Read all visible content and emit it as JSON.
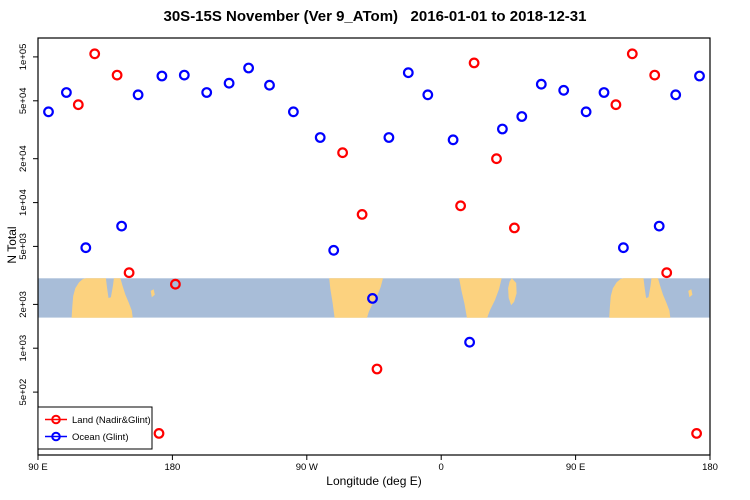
{
  "chart_data": {
    "type": "scatter",
    "title": "30S-15S November (Ver 9_ATom)   2016-01-01 to 2018-12-31",
    "xlabel": "Longitude (deg E)",
    "ylabel": "N Total",
    "y_scale": "log",
    "xlim": [
      90,
      540
    ],
    "ylim_log": [
      2.267,
      5.13
    ],
    "x_ticks": [
      {
        "pos": 90,
        "label": "90 E"
      },
      {
        "pos": 180,
        "label": "180"
      },
      {
        "pos": 270,
        "label": "90 W"
      },
      {
        "pos": 360,
        "label": "0"
      },
      {
        "pos": 450,
        "label": "90 E"
      },
      {
        "pos": 540,
        "label": "180"
      }
    ],
    "y_ticks": [
      {
        "value": 500,
        "label": "5e+02"
      },
      {
        "value": 1000,
        "label": "1e+03"
      },
      {
        "value": 2000,
        "label": "2e+03"
      },
      {
        "value": 5000,
        "label": "5e+03"
      },
      {
        "value": 10000,
        "label": "1e+04"
      },
      {
        "value": 20000,
        "label": "2e+04"
      },
      {
        "value": 50000,
        "label": "5e+04"
      },
      {
        "value": 100000,
        "label": "1e+05"
      }
    ],
    "legend": [
      {
        "label": "Land (Nadir&Glint)",
        "color": "#ff0000"
      },
      {
        "label": "Ocean (Glint)",
        "color": "#0000ff"
      }
    ],
    "series": [
      {
        "id": "land",
        "name": "Land (Nadir&Glint)",
        "color": "#ff0000",
        "points": [
          [
            117,
            47000
          ],
          [
            128,
            105000
          ],
          [
            143,
            75000
          ],
          [
            477,
            47000
          ],
          [
            488,
            105000
          ],
          [
            503,
            75000
          ],
          [
            294,
            22000
          ],
          [
            382,
            91000
          ],
          [
            397,
            20000
          ],
          [
            307,
            8300
          ],
          [
            373,
            9500
          ],
          [
            409,
            6700
          ],
          [
            151,
            3300
          ],
          [
            182,
            2750
          ],
          [
            511,
            3300
          ],
          [
            317,
            720
          ],
          [
            171,
            260
          ],
          [
            531,
            260
          ]
        ]
      },
      {
        "id": "ocean",
        "name": "Ocean (Glint)",
        "color": "#0000ff",
        "points": [
          [
            97,
            42000
          ],
          [
            109,
            57000
          ],
          [
            157,
            55000
          ],
          [
            173,
            74000
          ],
          [
            188,
            75000
          ],
          [
            203,
            57000
          ],
          [
            218,
            66000
          ],
          [
            231,
            84000
          ],
          [
            245,
            64000
          ],
          [
            261,
            42000
          ],
          [
            279,
            28000
          ],
          [
            325,
            28000
          ],
          [
            338,
            78000
          ],
          [
            351,
            55000
          ],
          [
            368,
            27000
          ],
          [
            401,
            32000
          ],
          [
            414,
            39000
          ],
          [
            427,
            65000
          ],
          [
            442,
            59000
          ],
          [
            457,
            42000
          ],
          [
            469,
            57000
          ],
          [
            517,
            55000
          ],
          [
            533,
            74000
          ],
          [
            122,
            4900
          ],
          [
            146,
            6900
          ],
          [
            482,
            4900
          ],
          [
            506,
            6900
          ],
          [
            288,
            4700
          ],
          [
            314,
            2200
          ],
          [
            379,
            1100
          ]
        ]
      }
    ],
    "map_band": {
      "log_top": 3.48,
      "log_bottom": 3.21,
      "ocean_color": "#a8bdd8",
      "land_color": "#fcd27f",
      "land": [
        {
          "name": "australia",
          "offsets": [
            0,
            360
          ],
          "points": [
            [
              112.5,
              1
            ],
            [
              113,
              0.72
            ],
            [
              113.6,
              0.45
            ],
            [
              115,
              0.25
            ],
            [
              117.5,
              0.1
            ],
            [
              120,
              0.02
            ],
            [
              122,
              0
            ],
            [
              135.5,
              0
            ],
            [
              136.3,
              0.25
            ],
            [
              137.2,
              0.5
            ],
            [
              138.8,
              0.48
            ],
            [
              140.2,
              0.18
            ],
            [
              140.8,
              0
            ],
            [
              145.2,
              0
            ],
            [
              146.5,
              0.18
            ],
            [
              148.5,
              0.42
            ],
            [
              150.8,
              0.62
            ],
            [
              152.8,
              0.82
            ],
            [
              153.4,
              1
            ]
          ]
        },
        {
          "name": "south-america",
          "offsets": [
            0
          ],
          "points": [
            [
              285,
              0
            ],
            [
              321,
              0
            ],
            [
              319.5,
              0.22
            ],
            [
              317,
              0.45
            ],
            [
              314,
              0.65
            ],
            [
              311.5,
              0.85
            ],
            [
              310.3,
              1
            ],
            [
              288.6,
              1
            ],
            [
              287.3,
              0.62
            ],
            [
              285.8,
              0.28
            ]
          ]
        },
        {
          "name": "africa",
          "offsets": [
            0
          ],
          "points": [
            [
              372,
              0
            ],
            [
              400.5,
              0
            ],
            [
              398.7,
              0.28
            ],
            [
              396,
              0.55
            ],
            [
              392.8,
              0.8
            ],
            [
              390.8,
              1
            ],
            [
              377.2,
              1
            ],
            [
              375.6,
              0.65
            ],
            [
              373.6,
              0.32
            ]
          ]
        },
        {
          "name": "madagascar",
          "offsets": [
            0
          ],
          "points": [
            [
              407.3,
              0
            ],
            [
              410.2,
              0.12
            ],
            [
              410.5,
              0.38
            ],
            [
              408.8,
              0.6
            ],
            [
              406.8,
              0.68
            ],
            [
              405.2,
              0.5
            ],
            [
              404.8,
              0.25
            ],
            [
              405.8,
              0.08
            ]
          ]
        },
        {
          "name": "new-caledonia",
          "offsets": [
            0,
            360
          ],
          "points": [
            [
              165.5,
              0.32
            ],
            [
              167.5,
              0.28
            ],
            [
              168.2,
              0.42
            ],
            [
              166.2,
              0.48
            ]
          ]
        }
      ]
    }
  }
}
